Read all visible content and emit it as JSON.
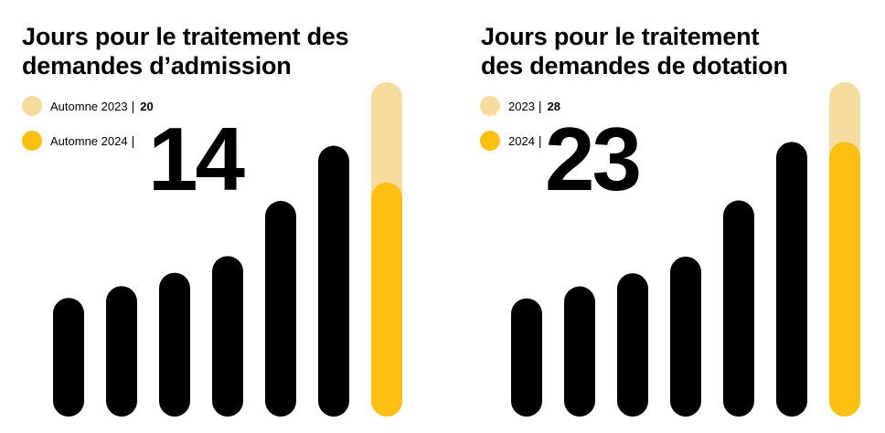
{
  "colors": {
    "previous": "#F7DCA0",
    "current": "#FDC010",
    "history": "#000000"
  },
  "chart_data": [
    {
      "type": "bar",
      "title": "Jours pour le traitement des demandes d’admission",
      "title_lines": [
        "Jours pour le traitement des",
        "demandes d’admission"
      ],
      "legend": [
        {
          "label": "Automne 2023",
          "separator": "|",
          "value": "20",
          "color": "#F7DCA0"
        },
        {
          "label": "Automne 2024",
          "separator": "|",
          "value": "",
          "color": "#FDC010"
        }
      ],
      "highlight_value": "14",
      "ylim": [
        0,
        20
      ],
      "history_values": [
        7.1,
        7.8,
        8.6,
        9.6,
        12.9,
        16.2
      ],
      "previous_value": 20,
      "current_value": 14
    },
    {
      "type": "bar",
      "title": "Jours pour le traitement des demandes de dotation",
      "title_lines": [
        "Jours pour le traitement",
        "des demandes de dotation"
      ],
      "legend": [
        {
          "label": "2023",
          "separator": "|",
          "value": "28",
          "color": "#F7DCA0"
        },
        {
          "label": "2024",
          "separator": "|",
          "value": "",
          "color": "#FDC010"
        }
      ],
      "highlight_value": "23",
      "ylim": [
        0,
        28
      ],
      "history_values": [
        9.9,
        10.9,
        12.0,
        13.4,
        18.1,
        23.0
      ],
      "previous_value": 28,
      "current_value": 23
    }
  ]
}
